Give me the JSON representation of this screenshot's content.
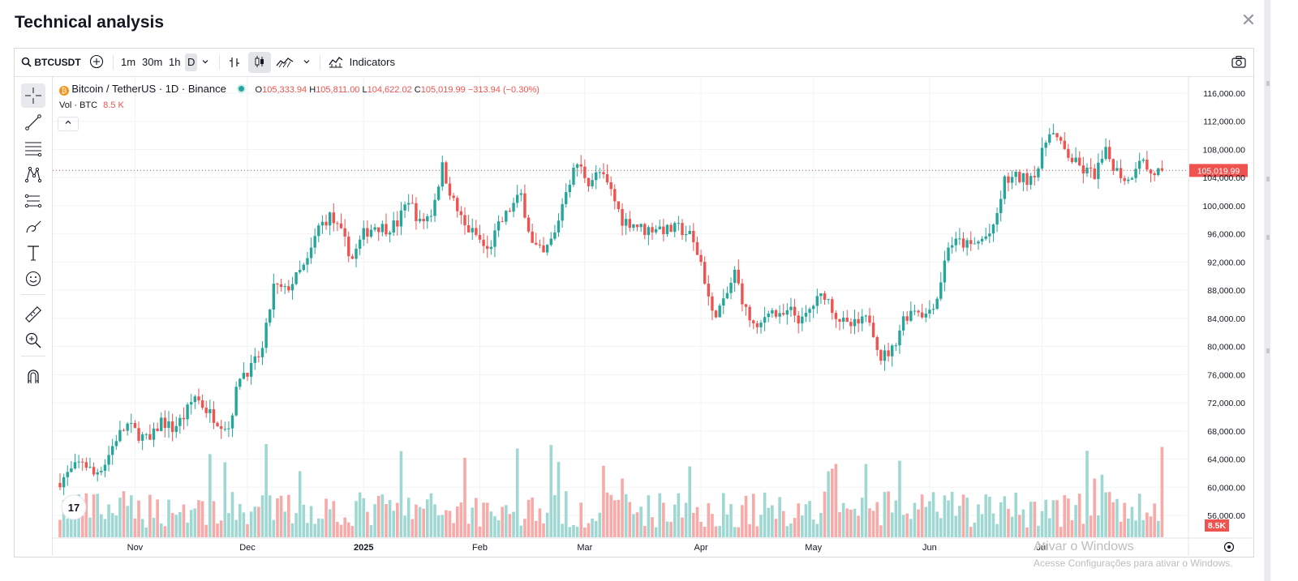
{
  "modal": {
    "title": "Technical analysis",
    "close_icon": "close-icon"
  },
  "toolbar": {
    "symbol": "BTCUSDT",
    "timeframes": [
      "1m",
      "30m",
      "1h",
      "D"
    ],
    "active_timeframe": "D",
    "indicators_label": "Indicators"
  },
  "legend": {
    "title": "Bitcoin / TetherUS · 1D · Binance",
    "open_label": "O",
    "open": "105,333.94",
    "high_label": "H",
    "high": "105,811.00",
    "low_label": "L",
    "low": "104,622.02",
    "close_label": "C",
    "close": "105,019.99",
    "change": "−313.94 (−0.30%)",
    "vol_label": "Vol · BTC",
    "vol_value": "8.5 K",
    "up_color": "#26a69a",
    "down_color": "#ef5350"
  },
  "chart_data": {
    "type": "candlestick",
    "title": "Bitcoin / TetherUS · 1D · Binance",
    "y_ticks": [
      "116,000.00",
      "112,000.00",
      "108,000.00",
      "104,000.00",
      "100,000.00",
      "96,000.00",
      "92,000.00",
      "88,000.00",
      "84,000.00",
      "80,000.00",
      "76,000.00",
      "72,000.00",
      "68,000.00",
      "64,000.00",
      "60,000.00",
      "56,000.00"
    ],
    "y_range": [
      56000,
      116000
    ],
    "x_ticks": [
      {
        "label": "Nov",
        "index": 20
      },
      {
        "label": "Dec",
        "index": 50
      },
      {
        "label": "2025",
        "index": 81
      },
      {
        "label": "Feb",
        "index": 112
      },
      {
        "label": "Mar",
        "index": 140
      },
      {
        "label": "Apr",
        "index": 171
      },
      {
        "label": "May",
        "index": 201
      },
      {
        "label": "Jun",
        "index": 232
      },
      {
        "label": "Jul",
        "index": 262
      }
    ],
    "last_price_label": "105,019.99",
    "last_price": 105019.99,
    "volume_label": "8.5K",
    "series_close": [
      [
        0,
        60900
      ],
      [
        3,
        62300
      ],
      [
        6,
        63800
      ],
      [
        9,
        61800
      ],
      [
        12,
        63500
      ],
      [
        15,
        67000
      ],
      [
        18,
        68800
      ],
      [
        21,
        67500
      ],
      [
        24,
        66500
      ],
      [
        27,
        69500
      ],
      [
        30,
        68300
      ],
      [
        33,
        70000
      ],
      [
        36,
        73000
      ],
      [
        39,
        71000
      ],
      [
        42,
        69500
      ],
      [
        45,
        68500
      ],
      [
        48,
        76000
      ],
      [
        51,
        76900
      ],
      [
        54,
        79500
      ],
      [
        57,
        88500
      ],
      [
        60,
        87900
      ],
      [
        63,
        89800
      ],
      [
        66,
        92000
      ],
      [
        69,
        97000
      ],
      [
        72,
        98500
      ],
      [
        75,
        96000
      ],
      [
        78,
        92500
      ],
      [
        81,
        96000
      ],
      [
        84,
        97200
      ],
      [
        87,
        96800
      ],
      [
        90,
        97500
      ],
      [
        93,
        101000
      ],
      [
        96,
        97500
      ],
      [
        99,
        99000
      ],
      [
        102,
        105500
      ],
      [
        105,
        100500
      ],
      [
        108,
        97000
      ],
      [
        111,
        95800
      ],
      [
        114,
        93500
      ],
      [
        117,
        97000
      ],
      [
        120,
        99500
      ],
      [
        123,
        101500
      ],
      [
        126,
        94500
      ],
      [
        129,
        93000
      ],
      [
        132,
        96000
      ],
      [
        135,
        102500
      ],
      [
        138,
        106000
      ],
      [
        141,
        103500
      ],
      [
        144,
        104700
      ],
      [
        147,
        102000
      ],
      [
        150,
        98000
      ],
      [
        153,
        97500
      ],
      [
        156,
        96500
      ],
      [
        159,
        97000
      ],
      [
        162,
        96500
      ],
      [
        165,
        96800
      ],
      [
        168,
        95800
      ],
      [
        171,
        92000
      ],
      [
        174,
        84500
      ],
      [
        177,
        86000
      ],
      [
        180,
        90500
      ],
      [
        183,
        85000
      ],
      [
        186,
        82000
      ],
      [
        189,
        85500
      ],
      [
        192,
        84000
      ],
      [
        195,
        85000
      ],
      [
        198,
        83500
      ],
      [
        201,
        86000
      ],
      [
        204,
        87500
      ],
      [
        207,
        84500
      ],
      [
        210,
        82800
      ],
      [
        213,
        83200
      ],
      [
        216,
        84000
      ],
      [
        219,
        78500
      ],
      [
        222,
        79500
      ],
      [
        225,
        84000
      ],
      [
        228,
        85500
      ],
      [
        231,
        84500
      ],
      [
        234,
        87000
      ],
      [
        237,
        94500
      ],
      [
        240,
        94800
      ],
      [
        243,
        94200
      ],
      [
        246,
        95200
      ],
      [
        249,
        96500
      ],
      [
        252,
        103500
      ],
      [
        255,
        104000
      ],
      [
        258,
        103800
      ],
      [
        261,
        105500
      ],
      [
        264,
        111000
      ],
      [
        267,
        108500
      ],
      [
        270,
        106500
      ],
      [
        273,
        105000
      ],
      [
        276,
        104500
      ],
      [
        279,
        107500
      ],
      [
        282,
        105000
      ],
      [
        285,
        103500
      ],
      [
        288,
        107000
      ],
      [
        291,
        104500
      ],
      [
        294,
        105019.99
      ]
    ],
    "up_color": "#26a69a",
    "down_color": "#ef5350"
  },
  "watermark": {
    "line1": "Ativar o Windows",
    "line2": "Acesse Configurações para ativar o Windows."
  }
}
